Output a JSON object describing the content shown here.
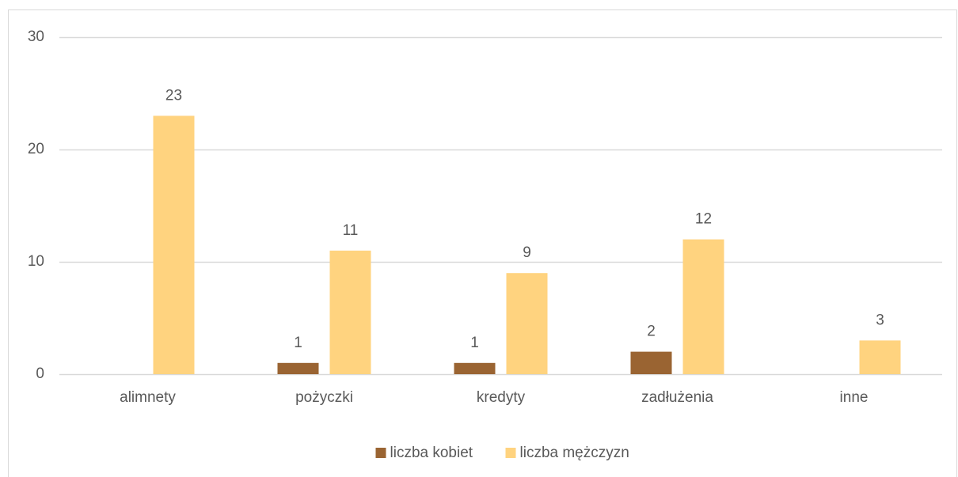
{
  "chart_data": {
    "type": "bar",
    "categories": [
      "alimnety",
      "pożyczki",
      "kredyty",
      "zadłużenia",
      "inne"
    ],
    "series": [
      {
        "name": "liczba kobiet",
        "color": "#9a6432",
        "values": [
          null,
          1,
          1,
          2,
          null
        ]
      },
      {
        "name": "liczba mężczyzn",
        "color": "#ffd37f",
        "values": [
          23,
          11,
          9,
          12,
          3
        ]
      }
    ],
    "ylim": [
      0,
      30
    ],
    "yticks": [
      0,
      10,
      20,
      30
    ],
    "grid": true,
    "legend": "bottom"
  }
}
